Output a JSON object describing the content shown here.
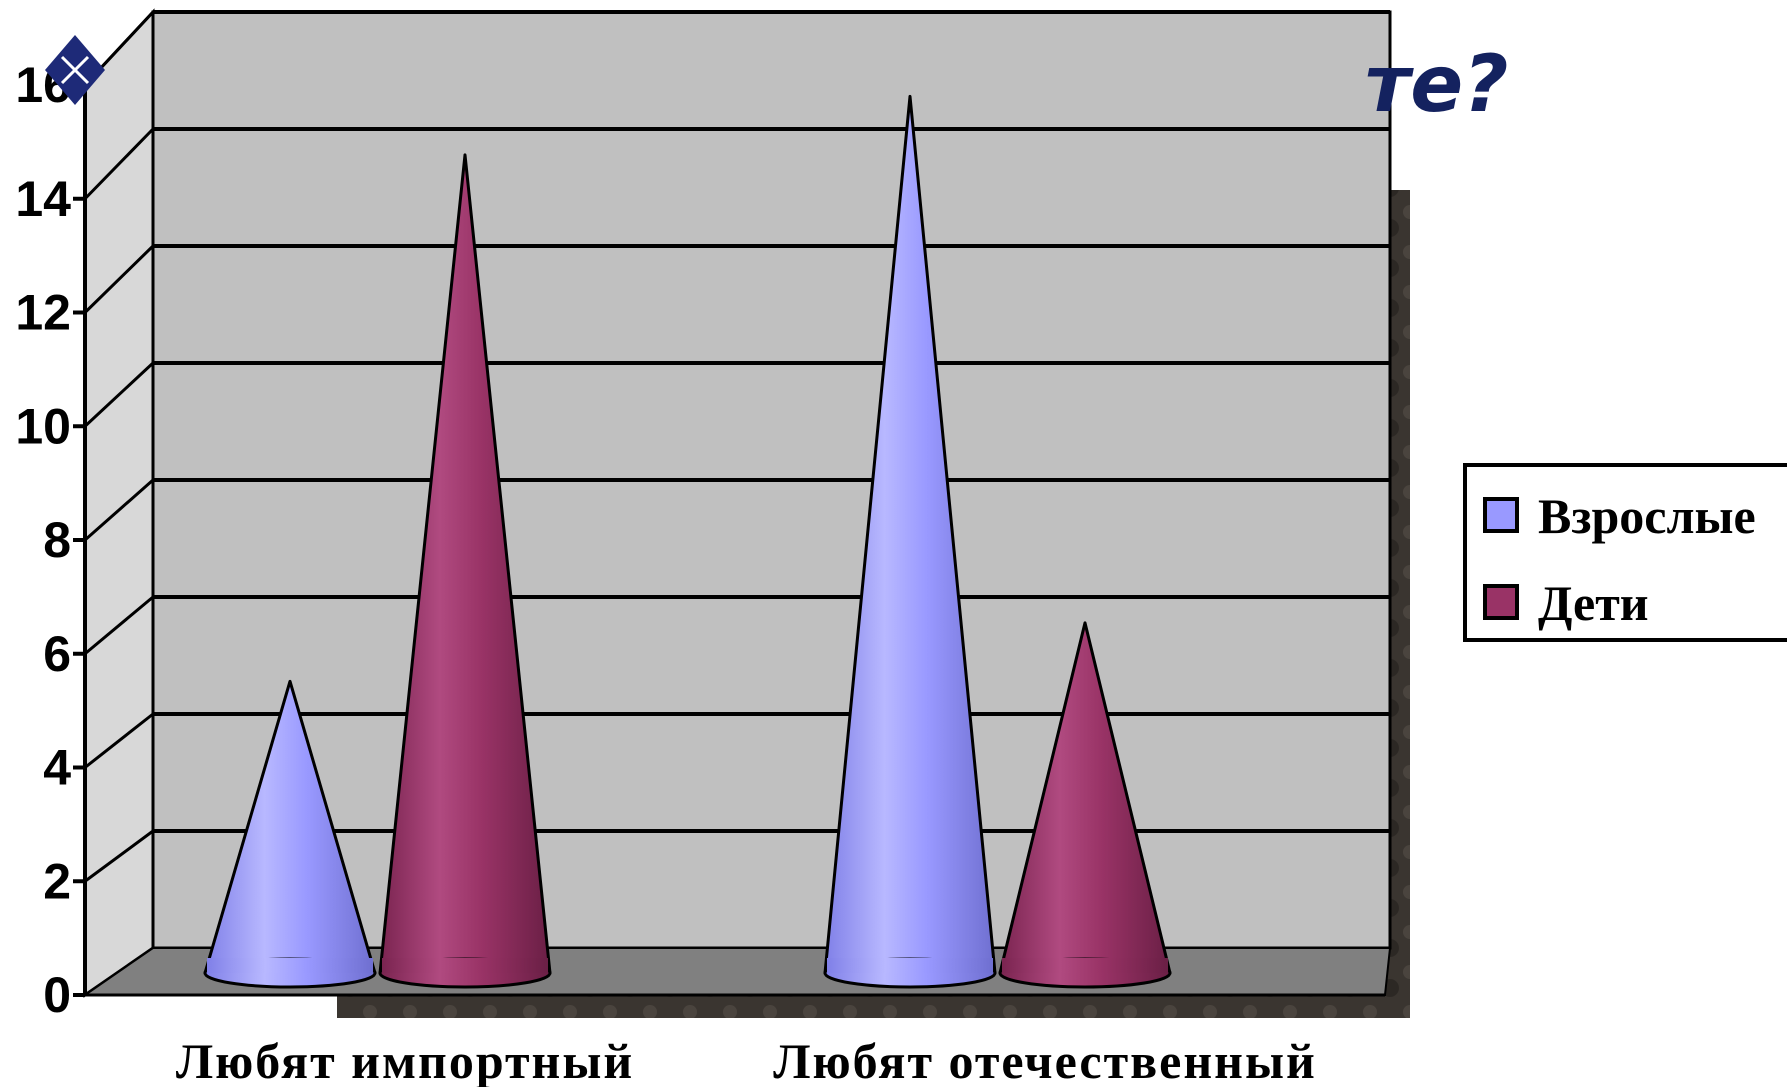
{
  "title_fragment": "те?",
  "chart_data": {
    "type": "bar",
    "shape": "cone-3d",
    "categories": [
      "Любят импортный",
      "Любят отечественный"
    ],
    "series": [
      {
        "name": "Взрослые",
        "values": [
          5,
          15
        ],
        "color": "#9999ff"
      },
      {
        "name": "Дети",
        "values": [
          14,
          6
        ],
        "color": "#993366"
      }
    ],
    "ylim": [
      0,
      16
    ],
    "yticks": [
      0,
      2,
      4,
      6,
      8,
      10,
      12,
      14,
      16
    ],
    "grid": true,
    "legend_position": "right",
    "colors": {
      "wall": "#c0c0c0",
      "floor": "#808080"
    }
  }
}
